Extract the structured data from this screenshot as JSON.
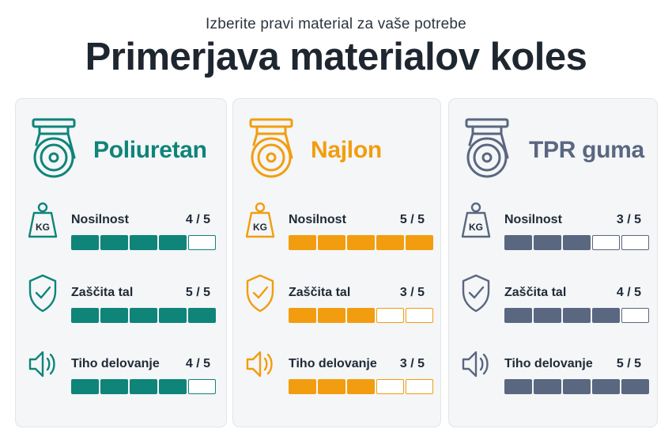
{
  "header": {
    "subtitle": "Izberite pravi material za vaše potrebe",
    "title": "Primerjava materialov koles"
  },
  "cards": [
    {
      "name": "Poliuretan",
      "color": "#0f8479",
      "icon": "caster-wheel-icon",
      "metrics": [
        {
          "label": "Nosilnost",
          "score_text": "4 / 5",
          "value": 4,
          "max": 5,
          "icon": "kg-weight-icon",
          "icon_text": "KG"
        },
        {
          "label": "Zaščita tal",
          "score_text": "5 / 5",
          "value": 5,
          "max": 5,
          "icon": "shield-check-icon"
        },
        {
          "label": "Tiho delovanje",
          "score_text": "4 / 5",
          "value": 4,
          "max": 5,
          "icon": "speaker-icon"
        }
      ]
    },
    {
      "name": "Najlon",
      "color": "#f29d0f",
      "icon": "caster-wheel-icon",
      "metrics": [
        {
          "label": "Nosilnost",
          "score_text": "5 / 5",
          "value": 5,
          "max": 5,
          "icon": "kg-weight-icon",
          "icon_text": "KG"
        },
        {
          "label": "Zaščita tal",
          "score_text": "3 / 5",
          "value": 3,
          "max": 5,
          "icon": "shield-check-icon"
        },
        {
          "label": "Tiho delovanje",
          "score_text": "3 / 5",
          "value": 3,
          "max": 5,
          "icon": "speaker-icon"
        }
      ]
    },
    {
      "name": "TPR guma",
      "color": "#5a6780",
      "icon": "caster-wheel-icon",
      "metrics": [
        {
          "label": "Nosilnost",
          "score_text": "3 / 5",
          "value": 3,
          "max": 5,
          "icon": "kg-weight-icon",
          "icon_text": "KG"
        },
        {
          "label": "Zaščita tal",
          "score_text": "4 / 5",
          "value": 4,
          "max": 5,
          "icon": "shield-check-icon"
        },
        {
          "label": "Tiho delovanje",
          "score_text": "5 / 5",
          "value": 5,
          "max": 5,
          "icon": "speaker-icon"
        }
      ]
    }
  ]
}
